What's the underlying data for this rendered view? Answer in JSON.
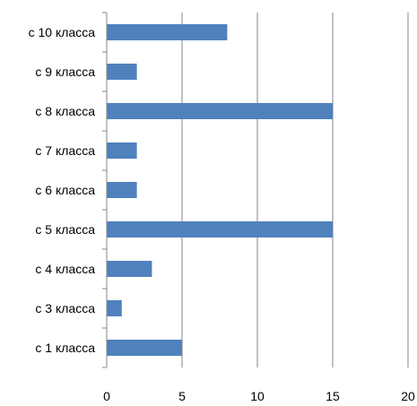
{
  "chart_data": {
    "type": "bar",
    "orientation": "horizontal",
    "categories": [
      "с 10 класса",
      "с 9 класса",
      "с 8 класса",
      "с 7 класса",
      "с 6 класса",
      "с 5 класса",
      "с 4 класса",
      "с 3 класса",
      "с 1 класса"
    ],
    "values": [
      8,
      2,
      15,
      2,
      2,
      15,
      3,
      1,
      5
    ],
    "xlim": [
      0,
      20
    ],
    "xticks": [
      "0",
      "5",
      "10",
      "15",
      "20"
    ],
    "grid": "vertical",
    "legend": "none",
    "title": "",
    "xlabel": "",
    "ylabel": "",
    "colors": {
      "bar": "#4f81bd",
      "grid": "#868686",
      "axis": "#868686"
    }
  }
}
